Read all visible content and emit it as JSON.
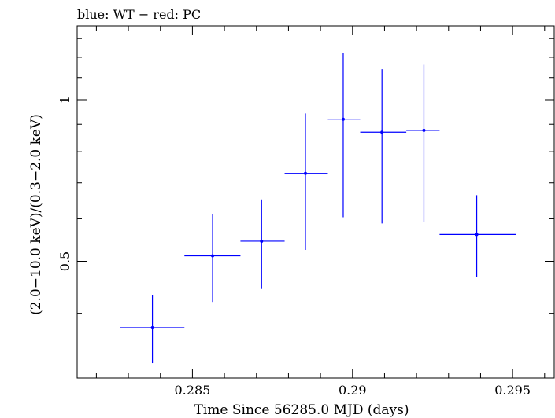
{
  "chart_data": {
    "type": "scatter",
    "title": "blue: WT − red: PC",
    "xlabel": "Time Since 56285.0 MJD (days)",
    "ylabel": "(2.0−10.0 keV)/(0.3−2.0 keV)",
    "yscale": "log",
    "xlim": [
      0.2814,
      0.2963
    ],
    "ylim": [
      0.303,
      1.373
    ],
    "x_ticks": [
      {
        "value": 0.285,
        "label": "0.285"
      },
      {
        "value": 0.29,
        "label": "0.29"
      },
      {
        "value": 0.295,
        "label": "0.295"
      }
    ],
    "y_ticks": [
      {
        "value": 0.5,
        "label": "0.5"
      },
      {
        "value": 1,
        "label": "1"
      }
    ],
    "series": [
      {
        "name": "WT",
        "color": "#0000ff",
        "points": [
          {
            "x": 0.28375,
            "xerr_lo": 0.28275,
            "xerr_hi": 0.28475,
            "y": 0.376,
            "y_lo": 0.323,
            "y_hi": 0.432
          },
          {
            "x": 0.28563,
            "xerr_lo": 0.28475,
            "xerr_hi": 0.2865,
            "y": 0.512,
            "y_lo": 0.42,
            "y_hi": 0.612
          },
          {
            "x": 0.28716,
            "xerr_lo": 0.2865,
            "xerr_hi": 0.28788,
            "y": 0.545,
            "y_lo": 0.444,
            "y_hi": 0.652
          },
          {
            "x": 0.28853,
            "xerr_lo": 0.28788,
            "xerr_hi": 0.28923,
            "y": 0.729,
            "y_lo": 0.525,
            "y_hi": 0.943
          },
          {
            "x": 0.28971,
            "xerr_lo": 0.28923,
            "xerr_hi": 0.29024,
            "y": 0.92,
            "y_lo": 0.604,
            "y_hi": 1.22
          },
          {
            "x": 0.29092,
            "xerr_lo": 0.29024,
            "xerr_hi": 0.29168,
            "y": 0.87,
            "y_lo": 0.588,
            "y_hi": 1.14
          },
          {
            "x": 0.29223,
            "xerr_lo": 0.29168,
            "xerr_hi": 0.29272,
            "y": 0.877,
            "y_lo": 0.591,
            "y_hi": 1.162
          },
          {
            "x": 0.29388,
            "xerr_lo": 0.29272,
            "xerr_hi": 0.29511,
            "y": 0.561,
            "y_lo": 0.467,
            "y_hi": 0.664
          }
        ]
      }
    ]
  }
}
